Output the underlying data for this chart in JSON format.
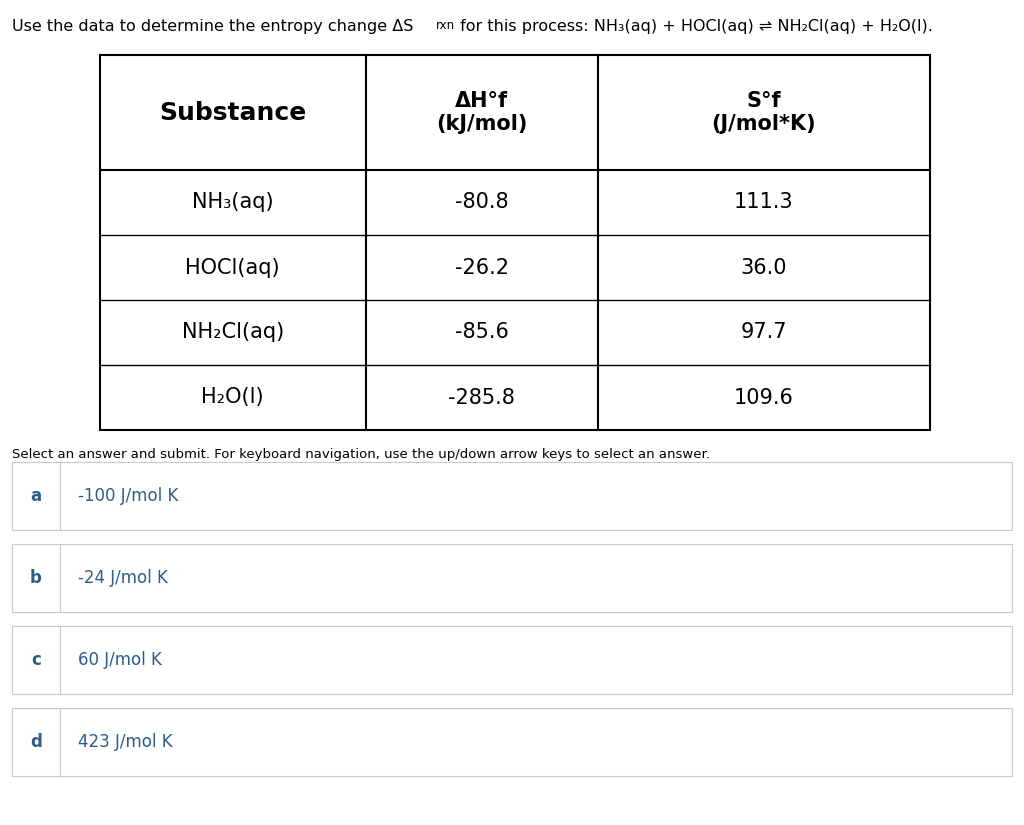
{
  "title_prefix": "Use the data to determine the entropy change ΔS",
  "title_rxn": "rxn",
  "title_suffix": " for this process: NH₃(aq) + HOCl(aq) ⇌ NH₂Cl(aq) + H₂O(l).",
  "table_headers": [
    "Substance",
    "ΔH°f\n(kJ/mol)",
    "S°f\n(J/mol*K)"
  ],
  "table_rows": [
    [
      "NH₃(aq)",
      "-80.8",
      "111.3"
    ],
    [
      "HOCl(aq)",
      "-26.2",
      "36.0"
    ],
    [
      "NH₂Cl(aq)",
      "-85.6",
      "97.7"
    ],
    [
      "H₂O(l)",
      "-285.8",
      "109.6"
    ]
  ],
  "select_text": "Select an answer and submit. For keyboard navigation, use the up/down arrow keys to select an answer.",
  "options": [
    {
      "label": "a",
      "text": "-100 J/mol K"
    },
    {
      "label": "b",
      "text": "-24 J/mol K"
    },
    {
      "label": "c",
      "text": "60 J/mol K"
    },
    {
      "label": "d",
      "text": "423 J/mol K"
    }
  ],
  "bg_color": "#ffffff",
  "title_color": "#000000",
  "option_label_color": "#2e5c8a",
  "option_text_color": "#2e5c8a",
  "select_text_color": "#000000",
  "table_border_color": "#000000",
  "option_border_color": "#c8c8d0"
}
